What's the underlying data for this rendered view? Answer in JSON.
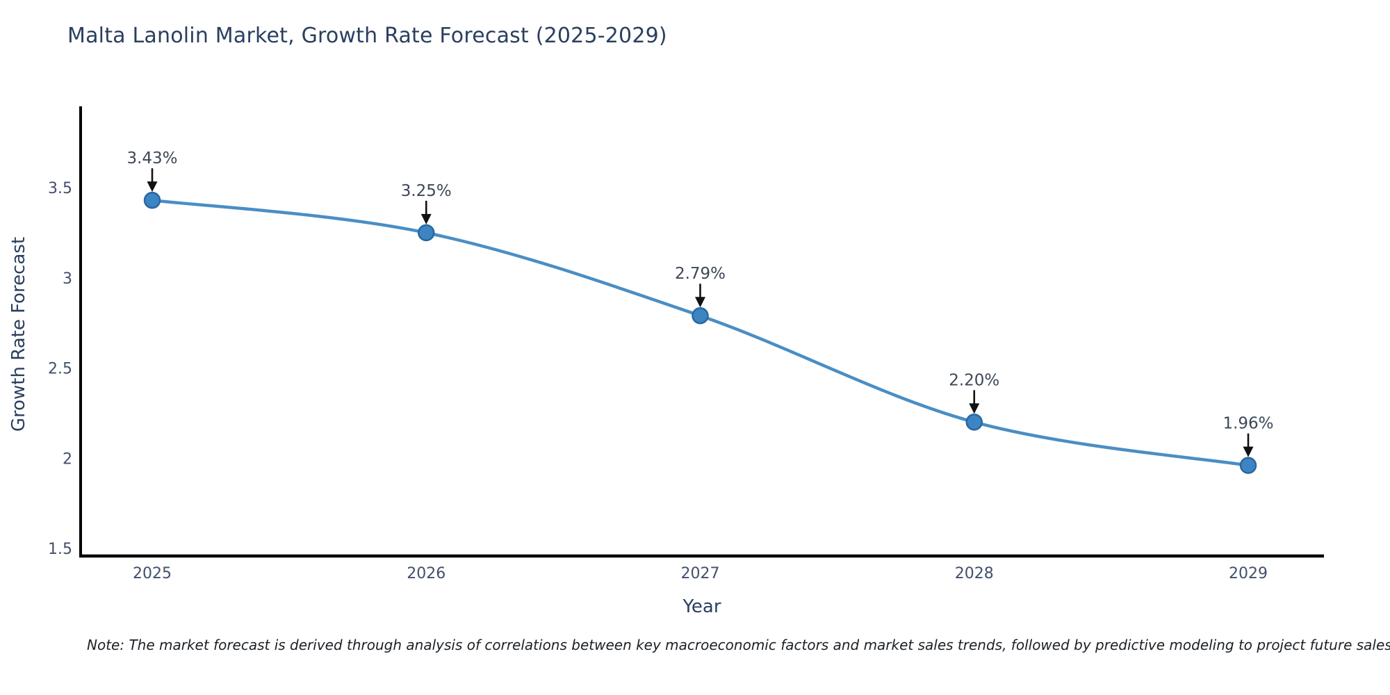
{
  "chart_data": {
    "type": "line",
    "title": "Malta Lanolin Market, Growth Rate Forecast (2025-2029)",
    "xlabel": "Year",
    "ylabel": "Growth Rate Forecast",
    "x": [
      2025,
      2026,
      2027,
      2028,
      2029
    ],
    "series": [
      {
        "name": "Growth Rate Forecast",
        "values": [
          3.43,
          3.25,
          2.79,
          2.2,
          1.96
        ]
      }
    ],
    "point_labels": [
      "3.43%",
      "3.25%",
      "2.79%",
      "2.20%",
      "1.96%"
    ],
    "yticks": [
      3.5,
      3,
      2.5,
      2,
      1.5
    ],
    "ylim": [
      1.46,
      3.94
    ],
    "xlim": [
      2025,
      2029
    ],
    "grid": false,
    "legend_position": "none",
    "line_shape": "spline"
  },
  "note": {
    "text": "Note: The market forecast is derived through analysis of correlations between key macroeconomic factors and market sales trends, followed by predictive modeling to project future sales"
  },
  "colors": {
    "line": "#4a8ec4",
    "marker_fill": "#3d84c2",
    "marker_edge": "#2a679f",
    "axis_line": "#000000",
    "title_text": "#2a3f5f",
    "axis_label_text": "#2a3f5f",
    "tick_text": "#42506b",
    "annotation_text": "#3c4757",
    "arrow": "#111111",
    "note_text": "#1b2026",
    "background": "#ffffff"
  }
}
